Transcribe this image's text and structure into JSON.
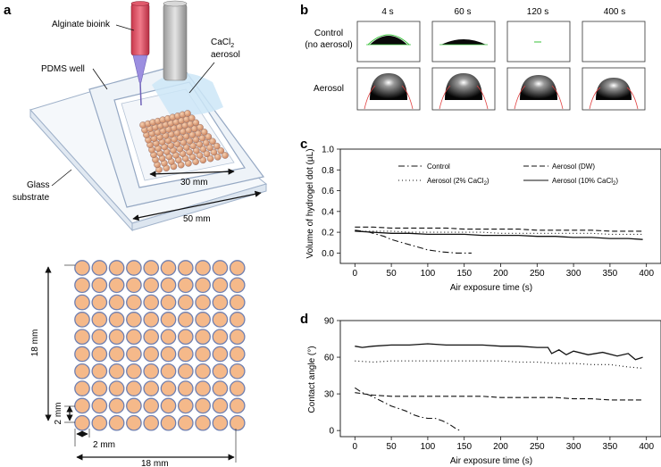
{
  "panels": {
    "a": {
      "letter": "a",
      "labels": {
        "bioink": "Alginate bioink",
        "pdms": "PDMS well",
        "aerosol_line1": "CaCl",
        "aerosol_sub": "2",
        "aerosol_line2": "aerosol",
        "glass_line1": "Glass",
        "glass_line2": "substrate",
        "dim_30": "30 mm",
        "dim_50": "50 mm"
      },
      "grid": {
        "rows": 10,
        "cols": 10,
        "dot_color": "#f5b98a",
        "dot_stroke": "#6f7fb0",
        "dim_height": "18 mm",
        "dim_width": "18 mm",
        "pitch_v": "2 mm",
        "pitch_h": "2 mm"
      }
    },
    "b": {
      "letter": "b",
      "times": [
        "4 s",
        "60 s",
        "120 s",
        "400 s"
      ],
      "rows": [
        {
          "label_line1": "Control",
          "label_line2": "(no aerosol)"
        },
        {
          "label_line1": "Aerosol",
          "label_line2": ""
        }
      ]
    },
    "c": {
      "letter": "c",
      "ylabel": "Volume of hydrogel dot (µL)",
      "xlabel": "Air exposure time (s)",
      "legend": {
        "control": "Control",
        "aerosol_dw": "Aerosol (DW)",
        "aerosol_2": "Aerosol (2% CaCl",
        "aerosol_2_sub": "2",
        "aerosol_2_tail": ")",
        "aerosol_10": "Aerosol (10% CaCl",
        "aerosol_10_sub": "2",
        "aerosol_10_tail": ")"
      }
    },
    "d": {
      "letter": "d",
      "ylabel": "Contact angle (°)",
      "xlabel": "Air exposure time (s)"
    }
  },
  "chart_data": [
    {
      "id": "c",
      "type": "line",
      "xlabel": "Air exposure time (s)",
      "ylabel": "Volume of hydrogel dot (µL)",
      "xlim": [
        -20,
        420
      ],
      "ylim": [
        -0.1,
        1.0
      ],
      "xticks": [
        0,
        50,
        100,
        150,
        200,
        250,
        300,
        350,
        400
      ],
      "yticks": [
        0.0,
        0.2,
        0.4,
        0.6,
        0.8,
        1.0
      ],
      "ytick_labels": [
        "0.0",
        "0.2",
        "0.4",
        "0.6",
        "0.8",
        "1.0"
      ],
      "series": [
        {
          "name": "Control",
          "dash": "7,3,1.5,3",
          "x": [
            0,
            10,
            20,
            30,
            40,
            50,
            60,
            70,
            80,
            90,
            100,
            110,
            120,
            130,
            140,
            150,
            160
          ],
          "y": [
            0.22,
            0.21,
            0.2,
            0.18,
            0.16,
            0.13,
            0.11,
            0.09,
            0.07,
            0.05,
            0.03,
            0.02,
            0.01,
            0.005,
            0.0,
            0.0,
            0.0
          ]
        },
        {
          "name": "Aerosol (DW)",
          "dash": "6,3",
          "x": [
            0,
            25,
            50,
            75,
            100,
            125,
            150,
            175,
            200,
            225,
            250,
            275,
            300,
            325,
            350,
            375,
            395
          ],
          "y": [
            0.25,
            0.25,
            0.24,
            0.24,
            0.24,
            0.24,
            0.23,
            0.23,
            0.23,
            0.23,
            0.22,
            0.22,
            0.22,
            0.22,
            0.21,
            0.21,
            0.21
          ]
        },
        {
          "name": "Aerosol (2% CaCl2)",
          "dash": "1,3",
          "x": [
            0,
            25,
            50,
            75,
            100,
            125,
            150,
            175,
            200,
            225,
            250,
            275,
            300,
            325,
            350,
            375,
            395
          ],
          "y": [
            0.21,
            0.21,
            0.21,
            0.2,
            0.2,
            0.2,
            0.2,
            0.2,
            0.19,
            0.19,
            0.19,
            0.19,
            0.19,
            0.19,
            0.18,
            0.18,
            0.18
          ]
        },
        {
          "name": "Aerosol (10% CaCl2)",
          "dash": "",
          "x": [
            0,
            25,
            50,
            75,
            100,
            125,
            150,
            175,
            200,
            225,
            250,
            275,
            300,
            325,
            350,
            375,
            395
          ],
          "y": [
            0.21,
            0.2,
            0.19,
            0.19,
            0.18,
            0.18,
            0.18,
            0.17,
            0.17,
            0.17,
            0.16,
            0.16,
            0.15,
            0.15,
            0.14,
            0.14,
            0.13
          ]
        }
      ]
    },
    {
      "id": "d",
      "type": "line",
      "xlabel": "Air exposure time (s)",
      "ylabel": "Contact angle (°)",
      "xlim": [
        -20,
        420
      ],
      "ylim": [
        -5,
        90
      ],
      "xticks": [
        0,
        50,
        100,
        150,
        200,
        250,
        300,
        350,
        400
      ],
      "yticks": [
        0,
        30,
        60,
        90
      ],
      "ytick_labels": [
        "0",
        "30",
        "60",
        "90"
      ],
      "series": [
        {
          "name": "Control",
          "dash": "7,3,1.5,3",
          "x": [
            0,
            10,
            20,
            30,
            40,
            50,
            60,
            70,
            80,
            90,
            100,
            110,
            120,
            130,
            140,
            145
          ],
          "y": [
            35,
            31,
            29,
            26,
            23,
            20,
            18,
            16,
            13,
            11,
            10,
            10,
            8,
            5,
            1,
            0
          ]
        },
        {
          "name": "Aerosol (DW)",
          "dash": "6,3",
          "x": [
            0,
            25,
            50,
            75,
            100,
            125,
            150,
            175,
            200,
            225,
            250,
            275,
            300,
            325,
            350,
            375,
            395
          ],
          "y": [
            31,
            29,
            28,
            28,
            28,
            28,
            28,
            28,
            27,
            27,
            27,
            27,
            26,
            26,
            25,
            25,
            25
          ]
        },
        {
          "name": "Aerosol (2% CaCl2)",
          "dash": "1,3",
          "x": [
            0,
            25,
            50,
            75,
            100,
            125,
            150,
            175,
            200,
            225,
            250,
            275,
            300,
            325,
            350,
            375,
            395
          ],
          "y": [
            57,
            56,
            57,
            57,
            57,
            57,
            57,
            57,
            57,
            56,
            56,
            55,
            55,
            54,
            54,
            52,
            51
          ]
        },
        {
          "name": "Aerosol (10% CaCl2)",
          "dash": "",
          "x": [
            0,
            10,
            25,
            50,
            75,
            100,
            125,
            150,
            175,
            200,
            225,
            250,
            265,
            270,
            280,
            290,
            300,
            320,
            340,
            360,
            375,
            385,
            395
          ],
          "y": [
            69,
            68,
            69,
            70,
            70,
            71,
            70,
            70,
            70,
            69,
            69,
            68,
            68,
            63,
            66,
            62,
            65,
            62,
            64,
            61,
            63,
            58,
            60
          ]
        }
      ]
    }
  ]
}
